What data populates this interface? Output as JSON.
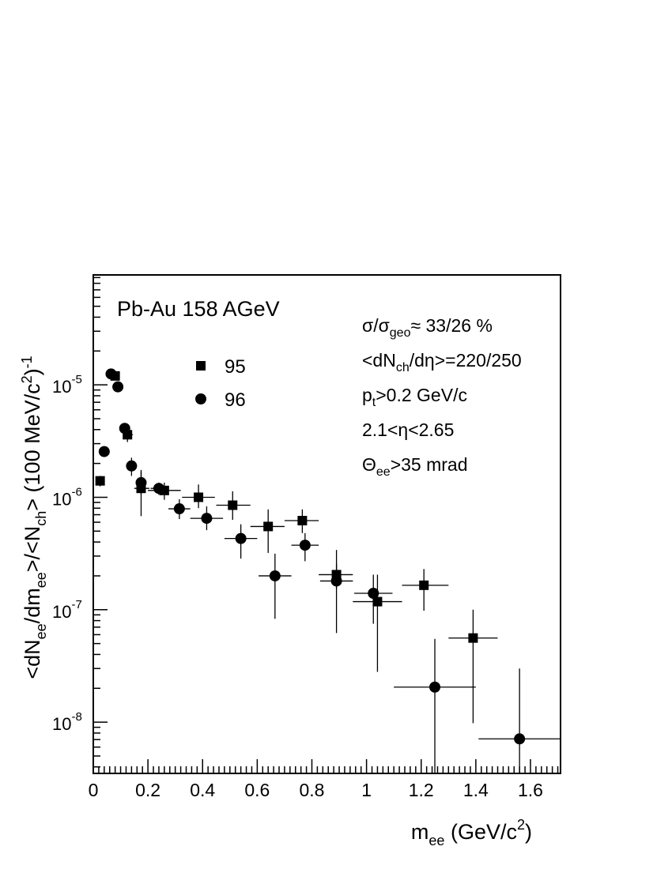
{
  "chart_data": {
    "type": "scatter",
    "title": "Pb-Au 158 AGeV",
    "xlabel": {
      "main": "m",
      "sub": "ee",
      "unit": " (GeV/c",
      "sup": "2",
      "close": ")"
    },
    "ylabel": {
      "parts": [
        {
          "t": "<dN",
          "k": "n"
        },
        {
          "t": "ee",
          "k": "sub"
        },
        {
          "t": "/dm",
          "k": "n"
        },
        {
          "t": "ee",
          "k": "sub"
        },
        {
          "t": ">/<N",
          "k": "n"
        },
        {
          "t": "ch",
          "k": "sub"
        },
        {
          "t": "> (100 MeV/c",
          "k": "n"
        },
        {
          "t": "2",
          "k": "sup"
        },
        {
          "t": ")",
          "k": "n"
        },
        {
          "t": "-1",
          "k": "sup"
        }
      ]
    },
    "xlim": [
      0,
      1.71
    ],
    "ylim": [
      3.5e-09,
      9.5e-05
    ],
    "yscale": "log",
    "xticks": [
      {
        "v": 0,
        "label": "0"
      },
      {
        "v": 0.2,
        "label": "0.2"
      },
      {
        "v": 0.4,
        "label": "0.4"
      },
      {
        "v": 0.6,
        "label": "0.6"
      },
      {
        "v": 0.8,
        "label": "0.8"
      },
      {
        "v": 1.0,
        "label": "1"
      },
      {
        "v": 1.2,
        "label": "1.2"
      },
      {
        "v": 1.4,
        "label": "1.4"
      },
      {
        "v": 1.6,
        "label": "1.6"
      }
    ],
    "yticks": [
      {
        "v": 1e-08,
        "base": "10",
        "exp": "-8"
      },
      {
        "v": 1e-07,
        "base": "10",
        "exp": "-7"
      },
      {
        "v": 1e-06,
        "base": "10",
        "exp": "-6"
      },
      {
        "v": 1e-05,
        "base": "10",
        "exp": "-5"
      }
    ],
    "legend": {
      "placement": "upper-left",
      "entries": [
        {
          "name": "95",
          "marker": "square"
        },
        {
          "name": "96",
          "marker": "circle"
        }
      ]
    },
    "annotations": [
      {
        "parts": [
          {
            "t": "σ/σ",
            "k": "n"
          },
          {
            "t": "geo",
            "k": "sub"
          },
          {
            "t": "≈ 33/26 %",
            "k": "n"
          }
        ]
      },
      {
        "parts": [
          {
            "t": "<dN",
            "k": "n"
          },
          {
            "t": "ch",
            "k": "sub"
          },
          {
            "t": "/dη>=220/250",
            "k": "n"
          }
        ]
      },
      {
        "parts": [
          {
            "t": "p",
            "k": "n"
          },
          {
            "t": "t",
            "k": "sub"
          },
          {
            "t": ">0.2 GeV/c",
            "k": "n"
          }
        ]
      },
      {
        "parts": [
          {
            "t": "2.1<η<2.65",
            "k": "n"
          }
        ]
      },
      {
        "parts": [
          {
            "t": "Θ",
            "k": "n"
          },
          {
            "t": "ee",
            "k": "sub"
          },
          {
            "t": ">35 mrad",
            "k": "n"
          }
        ]
      }
    ],
    "series": [
      {
        "name": "95",
        "marker": "square",
        "points": [
          {
            "x": 0.025,
            "xlo": 0.015,
            "xhi": 0.035,
            "y": 1.4e-06,
            "ylo": 1.25e-06,
            "yhi": 1.55e-06
          },
          {
            "x": 0.08,
            "xlo": 0.065,
            "xhi": 0.095,
            "y": 1.2e-05,
            "ylo": 1.1e-05,
            "yhi": 1.3e-05
          },
          {
            "x": 0.125,
            "xlo": 0.11,
            "xhi": 0.145,
            "y": 3.6e-06,
            "ylo": 3.1e-06,
            "yhi": 4.1e-06
          },
          {
            "x": 0.175,
            "xlo": 0.15,
            "xhi": 0.205,
            "y": 1.2e-06,
            "ylo": 6.8e-07,
            "yhi": 1.7e-06
          },
          {
            "x": 0.26,
            "xlo": 0.2,
            "xhi": 0.32,
            "y": 1.15e-06,
            "ylo": 9.5e-07,
            "yhi": 1.35e-06
          },
          {
            "x": 0.385,
            "xlo": 0.325,
            "xhi": 0.445,
            "y": 1e-06,
            "ylo": 8e-07,
            "yhi": 1.3e-06
          },
          {
            "x": 0.51,
            "xlo": 0.45,
            "xhi": 0.575,
            "y": 8.5e-07,
            "ylo": 6.3e-07,
            "yhi": 1.13e-06
          },
          {
            "x": 0.64,
            "xlo": 0.575,
            "xhi": 0.7,
            "y": 5.5e-07,
            "ylo": 3.2e-07,
            "yhi": 7.8e-07
          },
          {
            "x": 0.765,
            "xlo": 0.7,
            "xhi": 0.825,
            "y": 6.2e-07,
            "ylo": 4.8e-07,
            "yhi": 7.8e-07
          },
          {
            "x": 0.89,
            "xlo": 0.825,
            "xhi": 0.95,
            "y": 2.05e-07,
            "ylo": 1.55e-07,
            "yhi": 2.55e-07
          },
          {
            "x": 1.04,
            "xlo": 0.95,
            "xhi": 1.13,
            "y": 1.18e-07,
            "ylo": 2.8e-08,
            "yhi": 2.05e-07
          },
          {
            "x": 1.21,
            "xlo": 1.13,
            "xhi": 1.3,
            "y": 1.65e-07,
            "ylo": 9.8e-08,
            "yhi": 2.3e-07
          },
          {
            "x": 1.39,
            "xlo": 1.3,
            "xhi": 1.48,
            "y": 5.6e-08,
            "ylo": 9.8e-09,
            "yhi": 1e-07
          }
        ]
      },
      {
        "name": "96",
        "marker": "circle",
        "points": [
          {
            "x": 0.04,
            "xlo": 0.04,
            "xhi": 0.04,
            "y": 2.55e-06,
            "ylo": 2.45e-06,
            "yhi": 2.65e-06
          },
          {
            "x": 0.065,
            "xlo": 0.065,
            "xhi": 0.065,
            "y": 1.25e-05,
            "ylo": 1.18e-05,
            "yhi": 1.32e-05
          },
          {
            "x": 0.09,
            "xlo": 0.09,
            "xhi": 0.09,
            "y": 9.6e-06,
            "ylo": 9.1e-06,
            "yhi": 1.01e-05
          },
          {
            "x": 0.115,
            "xlo": 0.115,
            "xhi": 0.115,
            "y": 4.1e-06,
            "ylo": 3.8e-06,
            "yhi": 4.4e-06
          },
          {
            "x": 0.14,
            "xlo": 0.14,
            "xhi": 0.14,
            "y": 1.9e-06,
            "ylo": 1.55e-06,
            "yhi": 2.25e-06
          },
          {
            "x": 0.175,
            "xlo": 0.16,
            "xhi": 0.19,
            "y": 1.35e-06,
            "ylo": 1.05e-06,
            "yhi": 1.75e-06
          },
          {
            "x": 0.24,
            "xlo": 0.21,
            "xhi": 0.27,
            "y": 1.2e-06,
            "ylo": 1.05e-06,
            "yhi": 1.35e-06
          },
          {
            "x": 0.315,
            "xlo": 0.275,
            "xhi": 0.355,
            "y": 7.9e-07,
            "ylo": 6.4e-07,
            "yhi": 9.6e-07
          },
          {
            "x": 0.415,
            "xlo": 0.355,
            "xhi": 0.475,
            "y": 6.5e-07,
            "ylo": 5.1e-07,
            "yhi": 8.3e-07
          },
          {
            "x": 0.54,
            "xlo": 0.48,
            "xhi": 0.6,
            "y": 4.3e-07,
            "ylo": 2.85e-07,
            "yhi": 5.75e-07
          },
          {
            "x": 0.665,
            "xlo": 0.605,
            "xhi": 0.725,
            "y": 2e-07,
            "ylo": 8.3e-08,
            "yhi": 3.15e-07
          },
          {
            "x": 0.775,
            "xlo": 0.725,
            "xhi": 0.825,
            "y": 3.75e-07,
            "ylo": 2.7e-07,
            "yhi": 4.8e-07
          },
          {
            "x": 0.89,
            "xlo": 0.83,
            "xhi": 0.95,
            "y": 1.8e-07,
            "ylo": 6.2e-08,
            "yhi": 3.4e-07
          },
          {
            "x": 1.025,
            "xlo": 0.955,
            "xhi": 1.095,
            "y": 1.4e-07,
            "ylo": 7.5e-08,
            "yhi": 2.05e-07
          },
          {
            "x": 1.25,
            "xlo": 1.1,
            "xhi": 1.4,
            "y": 2.05e-08,
            "ylo": 3.5e-09,
            "yhi": 5.5e-08
          },
          {
            "x": 1.56,
            "xlo": 1.41,
            "xhi": 1.71,
            "y": 7.1e-09,
            "ylo": 3.5e-09,
            "yhi": 3e-08
          }
        ]
      }
    ]
  }
}
